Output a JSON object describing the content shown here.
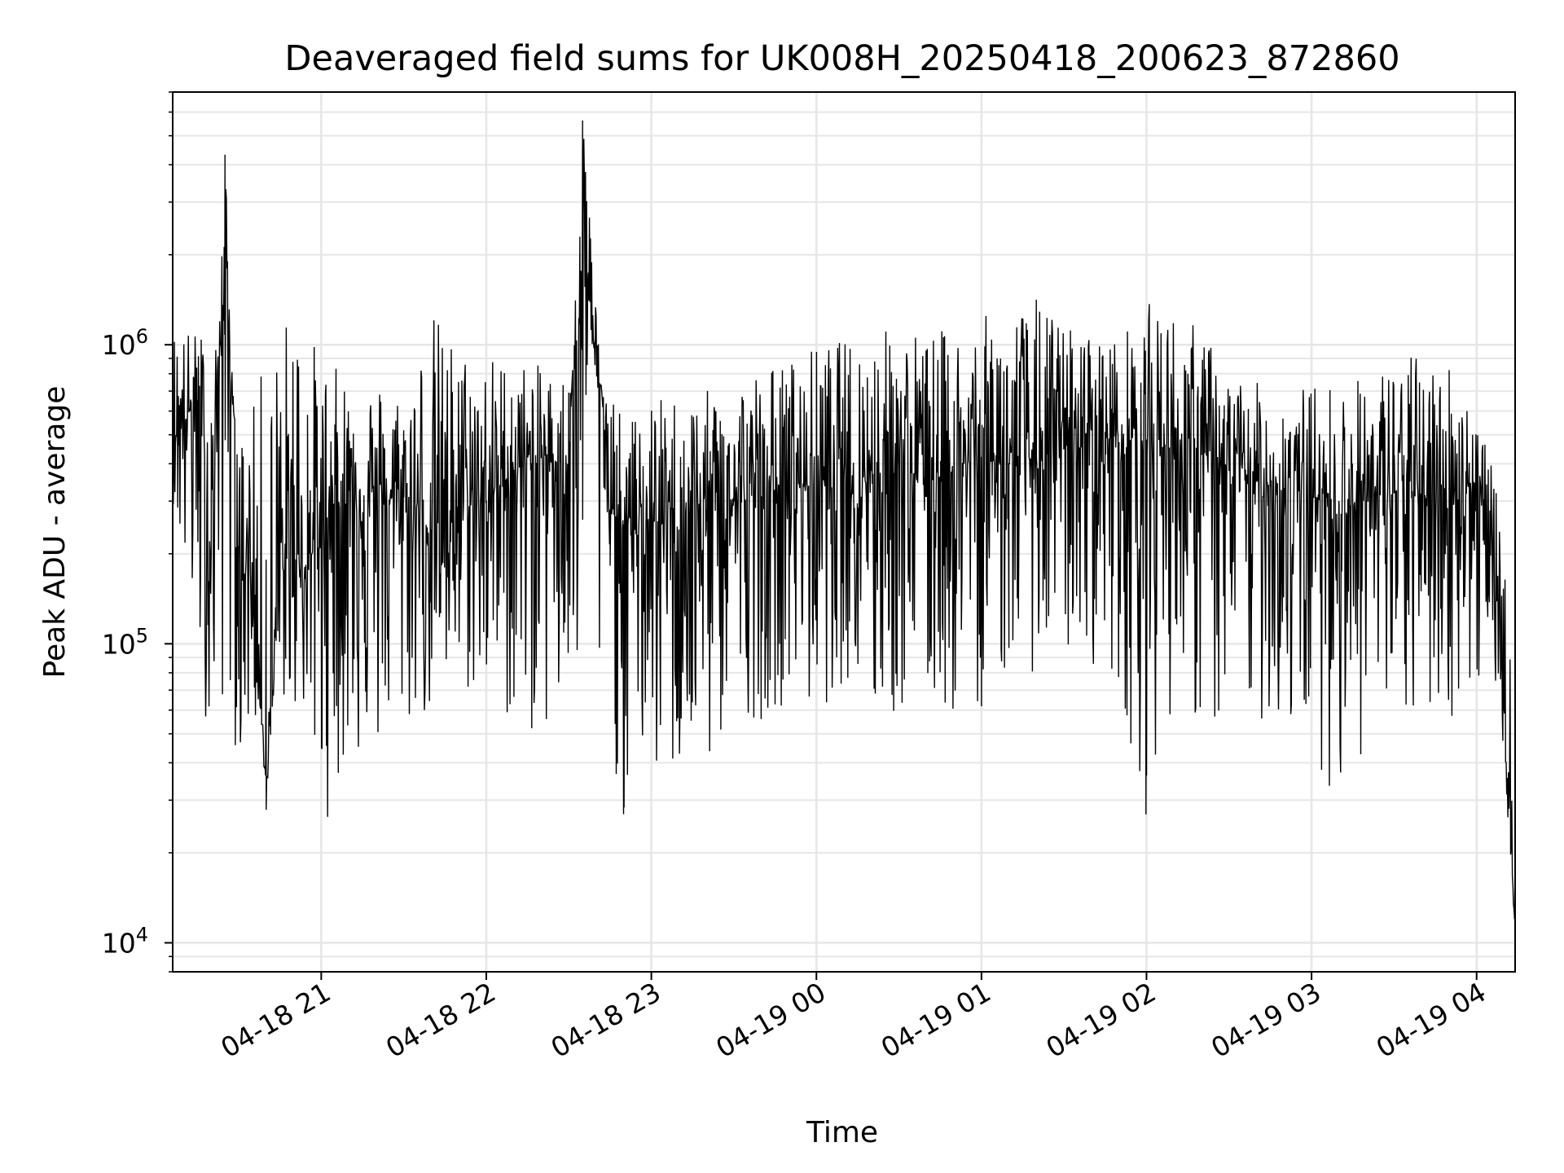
{
  "chart_data": {
    "type": "line",
    "title": "Deaveraged field sums for UK008H_20250418_200623_872860",
    "xlabel": "Time",
    "ylabel": "Peak ADU - average",
    "y_scale": "log",
    "ylim": [
      8000,
      7000000
    ],
    "xlim": [
      "2025-04-18 20:06",
      "2025-04-19 04:14"
    ],
    "grid": true,
    "line_color": "#000000",
    "y_ticks": [
      {
        "value": 10000,
        "base": "10",
        "exp": "4"
      },
      {
        "value": 100000,
        "base": "10",
        "exp": "5"
      },
      {
        "value": 1000000,
        "base": "10",
        "exp": "6"
      }
    ],
    "x_ticks": [
      {
        "value": "2025-04-18 21:00",
        "label": "04-18 21"
      },
      {
        "value": "2025-04-18 22:00",
        "label": "04-18 22"
      },
      {
        "value": "2025-04-18 23:00",
        "label": "04-18 23"
      },
      {
        "value": "2025-04-19 00:00",
        "label": "04-19 00"
      },
      {
        "value": "2025-04-19 01:00",
        "label": "04-19 01"
      },
      {
        "value": "2025-04-19 02:00",
        "label": "04-19 02"
      },
      {
        "value": "2025-04-19 03:00",
        "label": "04-19 03"
      },
      {
        "value": "2025-04-19 04:00",
        "label": "04-19 04"
      }
    ],
    "x": [
      "2025-04-18 20:06",
      "2025-04-18 20:15",
      "2025-04-18 20:20",
      "2025-04-18 20:25",
      "2025-04-18 20:30",
      "2025-04-18 20:35",
      "2025-04-18 20:40",
      "2025-04-18 20:45",
      "2025-04-18 20:50",
      "2025-04-18 20:55",
      "2025-04-18 21:00",
      "2025-04-18 21:10",
      "2025-04-18 21:20",
      "2025-04-18 21:30",
      "2025-04-18 21:40",
      "2025-04-18 21:50",
      "2025-04-18 22:00",
      "2025-04-18 22:10",
      "2025-04-18 22:20",
      "2025-04-18 22:30",
      "2025-04-18 22:35",
      "2025-04-18 22:45",
      "2025-04-18 22:50",
      "2025-04-18 22:55",
      "2025-04-18 23:00",
      "2025-04-18 23:10",
      "2025-04-18 23:20",
      "2025-04-18 23:30",
      "2025-04-18 23:40",
      "2025-04-18 23:50",
      "2025-04-19 00:00",
      "2025-04-19 00:10",
      "2025-04-19 00:20",
      "2025-04-19 00:30",
      "2025-04-19 00:40",
      "2025-04-19 00:50",
      "2025-04-19 01:00",
      "2025-04-19 01:10",
      "2025-04-19 01:20",
      "2025-04-19 01:30",
      "2025-04-19 01:40",
      "2025-04-19 01:50",
      "2025-04-19 02:00",
      "2025-04-19 02:10",
      "2025-04-19 02:20",
      "2025-04-19 02:30",
      "2025-04-19 02:40",
      "2025-04-19 02:50",
      "2025-04-19 03:00",
      "2025-04-19 03:10",
      "2025-04-19 03:20",
      "2025-04-19 03:30",
      "2025-04-19 03:40",
      "2025-04-19 03:50",
      "2025-04-19 04:00",
      "2025-04-19 04:05",
      "2025-04-19 04:10",
      "2025-04-19 04:14"
    ],
    "y": [
      500000,
      650000,
      200000,
      4300000,
      190000,
      180000,
      28000,
      170000,
      200000,
      180000,
      250000,
      330000,
      300000,
      310000,
      240000,
      290000,
      300000,
      380000,
      420000,
      400000,
      5600000,
      280000,
      250000,
      230000,
      260000,
      240000,
      280000,
      300000,
      310000,
      340000,
      350000,
      360000,
      380000,
      390000,
      370000,
      380000,
      420000,
      400000,
      420000,
      450000,
      520000,
      470000,
      480000,
      450000,
      430000,
      380000,
      350000,
      330000,
      310000,
      290000,
      300000,
      320000,
      310000,
      330000,
      350000,
      200000,
      60000,
      11000
    ],
    "series": [
      {
        "low": [
          300000,
          80000,
          45000,
          60000,
          40000,
          50000,
          60000,
          60000,
          60000,
          55000,
          23000,
          40000,
          40000,
          50000,
          55000,
          65000,
          65000,
          50000,
          48000,
          50000,
          55000,
          50000,
          23000,
          45000,
          32000,
          35000,
          33000,
          60000,
          55000,
          65000,
          55000,
          75000,
          48000,
          55000,
          60000,
          55000,
          60000,
          80000,
          80000,
          90000,
          85000,
          70000,
          26000,
          65000,
          50000,
          45000,
          55000,
          50000,
          45000,
          28000,
          45000,
          45000,
          55000,
          55000,
          60000,
          110000,
          40000,
          11000
        ],
        "high": [
          1200000,
          1100000,
          1250000,
          800000,
          500000,
          600000,
          1050000,
          1100000,
          1550000,
          1200000,
          900000,
          800000,
          780000,
          700000,
          1350000,
          1000000,
          950000,
          900000,
          850000,
          800000,
          700000,
          700000,
          550000,
          600000,
          650000,
          700000,
          700000,
          800000,
          850000,
          900000,
          1000000,
          1050000,
          1100000,
          1200000,
          1100000,
          1150000,
          1250000,
          1300000,
          1450000,
          1200000,
          1100000,
          1050000,
          1400000,
          1300000,
          1150000,
          800000,
          750000,
          700000,
          750000,
          750000,
          800000,
          900000,
          950000,
          900000,
          600000,
          450000,
          200000,
          50000
        ]
      }
    ]
  }
}
